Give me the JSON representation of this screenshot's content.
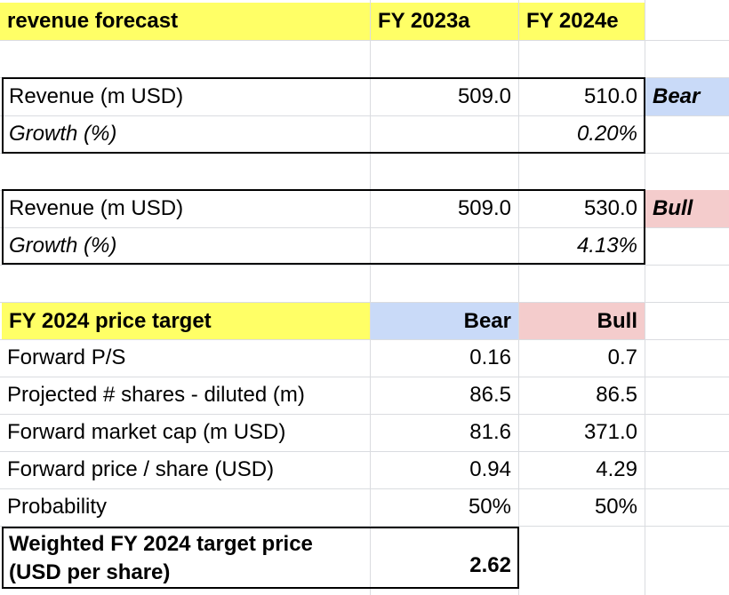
{
  "header": {
    "title": "revenue forecast",
    "col_fy2023": "FY 2023a",
    "col_fy2024": "FY 2024e"
  },
  "bear_scenario": {
    "revenue_label": "Revenue (m USD)",
    "revenue_2023": "509.0",
    "revenue_2024": "510.0",
    "growth_label": "Growth (%)",
    "growth_2024": "0.20%",
    "tag": "Bear"
  },
  "bull_scenario": {
    "revenue_label": "Revenue (m USD)",
    "revenue_2023": "509.0",
    "revenue_2024": "530.0",
    "growth_label": "Growth (%)",
    "growth_2024": "4.13%",
    "tag": "Bull"
  },
  "price_target": {
    "title": "FY 2024 price target",
    "col_bear": "Bear",
    "col_bull": "Bull",
    "rows": [
      {
        "label": "Forward P/S",
        "bear": "0.16",
        "bull": "0.7"
      },
      {
        "label": "Projected # shares - diluted (m)",
        "bear": "86.5",
        "bull": "86.5"
      },
      {
        "label": "Forward market cap (m USD)",
        "bear": "81.6",
        "bull": "371.0"
      },
      {
        "label": "Forward price / share (USD)",
        "bear": "0.94",
        "bull": "4.29"
      },
      {
        "label": "Probability",
        "bear": "50%",
        "bull": "50%"
      }
    ],
    "weighted_label_line1": "Weighted FY 2024 target price",
    "weighted_label_line2": "(USD per share)",
    "weighted_value": "2.62"
  },
  "colors": {
    "header_yellow": "#ffff66",
    "bear_blue": "#c9daf8",
    "bull_pink": "#f4cccc",
    "grid": "#dadce0"
  }
}
